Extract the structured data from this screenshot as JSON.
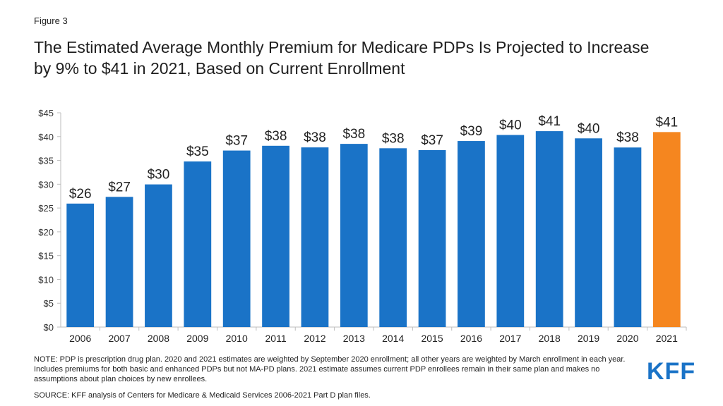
{
  "figure_label": "Figure 3",
  "title": "The Estimated Average Monthly Premium for Medicare PDPs Is Projected to Increase by 9% to $41 in 2021, Based on Current Enrollment",
  "note": "NOTE: PDP is prescription drug plan. 2020 and 2021 estimates are weighted by September 2020 enrollment; all other years are weighted by March enrollment in each year. Includes premiums for both basic and enhanced PDPs but not MA-PD plans. 2021 estimate assumes current PDP enrollees remain in their same plan and makes no assumptions about plan choices by new enrollees.",
  "source": "SOURCE: KFF analysis of Centers for Medicare & Medicaid Services 2006-2021 Part D plan files.",
  "logo_text": "KFF",
  "colors": {
    "bar": "#1a73c7",
    "highlight_bar": "#f5861f",
    "logo": "#1a73c7"
  },
  "chart_data": {
    "type": "bar",
    "categories": [
      "2006",
      "2007",
      "2008",
      "2009",
      "2010",
      "2011",
      "2012",
      "2013",
      "2014",
      "2015",
      "2016",
      "2017",
      "2018",
      "2019",
      "2020",
      "2021"
    ],
    "values": [
      25.93,
      27.34,
      29.96,
      34.77,
      37.07,
      38.07,
      37.73,
      38.47,
      37.55,
      37.17,
      39.07,
      40.34,
      41.14,
      39.63,
      37.71,
      40.95
    ],
    "data_labels": [
      "$26",
      "$27",
      "$30",
      "$35",
      "$37",
      "$38",
      "$38",
      "$38",
      "$38",
      "$37",
      "$39",
      "$40",
      "$41",
      "$40",
      "$38",
      "$41"
    ],
    "highlight_index": 15,
    "y_ticks": [
      0,
      5,
      10,
      15,
      20,
      25,
      30,
      35,
      40,
      45
    ],
    "y_tick_labels": [
      "$0",
      "$5",
      "$10",
      "$15",
      "$20",
      "$25",
      "$30",
      "$35",
      "$40",
      "$45"
    ],
    "ylim": [
      0,
      45
    ],
    "grid": false,
    "xlabel": "",
    "ylabel": ""
  }
}
